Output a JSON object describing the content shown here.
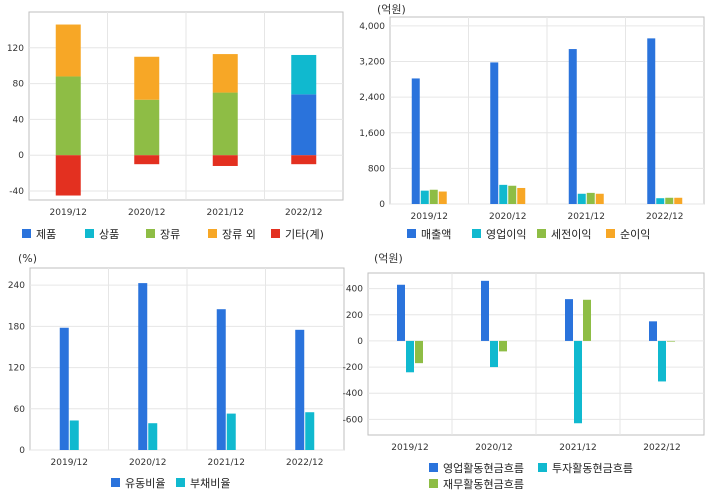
{
  "colors": {
    "blue": "#2a73dc",
    "cyan": "#10b9cf",
    "green": "#8ebd45",
    "orange": "#f7a726",
    "red": "#e33020",
    "grid": "#e6e6e6",
    "frame": "#bfbfbf"
  },
  "chart_data": [
    {
      "type": "bar",
      "stacked": true,
      "unit": "",
      "categories": [
        "2019/12",
        "2020/12",
        "2021/12",
        "2022/12"
      ],
      "ylim": [
        -50,
        160
      ],
      "yticks": [
        -40,
        0,
        40,
        80,
        120
      ],
      "grid": true,
      "legend_position": "bottom",
      "series": [
        {
          "name": "제품",
          "color_key": "blue",
          "values": [
            0,
            0,
            0,
            68
          ]
        },
        {
          "name": "상품",
          "color_key": "cyan",
          "values": [
            0,
            0,
            0,
            44
          ]
        },
        {
          "name": "장류",
          "color_key": "green",
          "values": [
            88,
            62,
            70,
            0
          ]
        },
        {
          "name": "장류 외",
          "color_key": "orange",
          "values": [
            58,
            48,
            43,
            0
          ]
        },
        {
          "name": "기타(계)",
          "color_key": "red",
          "values": [
            -45,
            -10,
            -12,
            -10
          ]
        }
      ]
    },
    {
      "type": "bar",
      "stacked": false,
      "unit": "(억원)",
      "categories": [
        "2019/12",
        "2020/12",
        "2021/12",
        "2022/12"
      ],
      "ylim": [
        0,
        4200
      ],
      "yticks": [
        0,
        800,
        1600,
        2400,
        3200,
        4000
      ],
      "yticklabels": [
        "0",
        "800",
        "1,600",
        "2,400",
        "3,200",
        "4,000"
      ],
      "grid": true,
      "legend_position": "bottom",
      "series": [
        {
          "name": "매출액",
          "color_key": "blue",
          "values": [
            2820,
            3180,
            3480,
            3720
          ]
        },
        {
          "name": "영업이익",
          "color_key": "cyan",
          "values": [
            300,
            430,
            230,
            130
          ]
        },
        {
          "name": "세전이익",
          "color_key": "green",
          "values": [
            320,
            410,
            250,
            140
          ]
        },
        {
          "name": "순이익",
          "color_key": "orange",
          "values": [
            280,
            360,
            230,
            140
          ]
        }
      ]
    },
    {
      "type": "bar",
      "stacked": false,
      "unit": "(%)",
      "categories": [
        "2019/12",
        "2020/12",
        "2021/12",
        "2022/12"
      ],
      "ylim": [
        0,
        265
      ],
      "yticks": [
        0,
        60,
        120,
        180,
        240
      ],
      "grid": true,
      "legend_position": "bottom",
      "series": [
        {
          "name": "유동비율",
          "color_key": "blue",
          "values": [
            178,
            243,
            205,
            175
          ]
        },
        {
          "name": "부채비율",
          "color_key": "cyan",
          "values": [
            43,
            39,
            53,
            55
          ]
        }
      ]
    },
    {
      "type": "bar",
      "stacked": false,
      "unit": "(억원)",
      "categories": [
        "2019/12",
        "2020/12",
        "2021/12",
        "2022/12"
      ],
      "ylim": [
        -720,
        520
      ],
      "yticks": [
        -600,
        -400,
        -200,
        0,
        200,
        400
      ],
      "yticklabels": [
        "-600",
        "-400",
        "-200",
        "0",
        "200",
        "400"
      ],
      "grid": true,
      "legend_position": "bottom",
      "series": [
        {
          "name": "영업활동현금흐름",
          "color_key": "blue",
          "values": [
            430,
            460,
            320,
            150
          ]
        },
        {
          "name": "투자활동현금흐름",
          "color_key": "cyan",
          "values": [
            -240,
            -200,
            -630,
            -310
          ]
        },
        {
          "name": "재무활동현금흐름",
          "color_key": "green",
          "values": [
            -170,
            -80,
            315,
            -5
          ]
        }
      ]
    }
  ]
}
